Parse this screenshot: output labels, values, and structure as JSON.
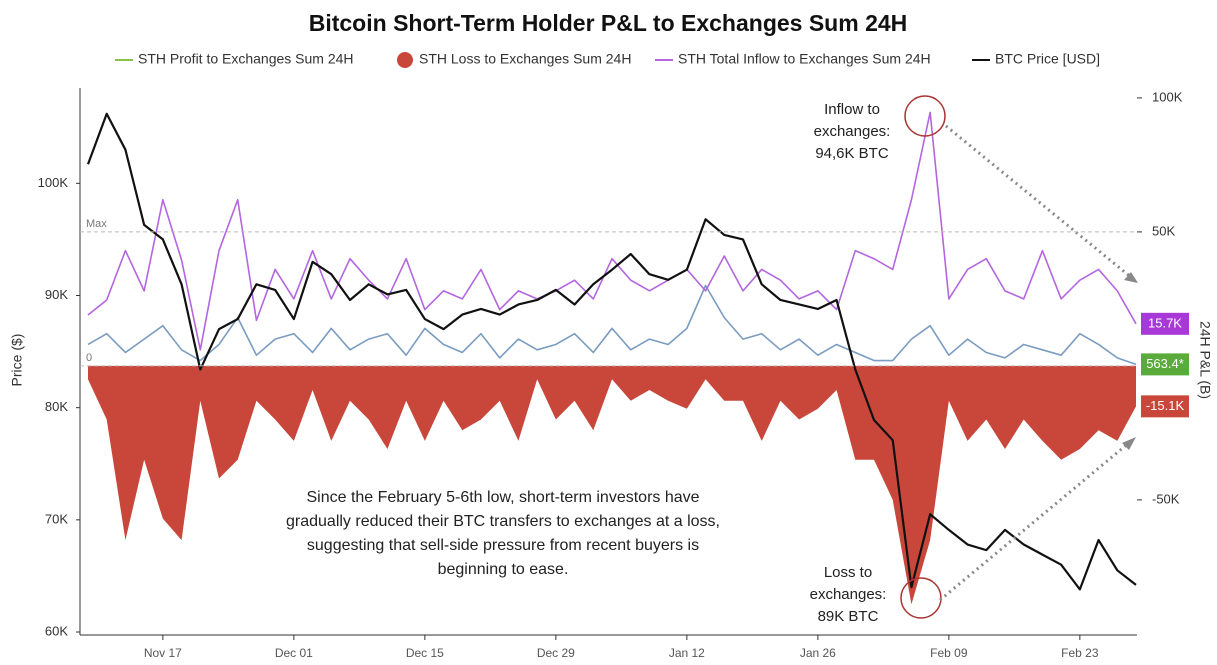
{
  "chart_data": {
    "type": "line",
    "title": "Bitcoin Short-Term Holder P&L to Exchanges Sum 24H",
    "y_label": "Price ($)",
    "y2_label": "24H P&L (B)",
    "categories": [
      null,
      null,
      null,
      null,
      "Nov 17",
      null,
      null,
      null,
      null,
      null,
      null,
      "Dec 01",
      null,
      null,
      null,
      null,
      null,
      null,
      "Dec 15",
      null,
      null,
      null,
      null,
      null,
      null,
      "Dec 29",
      null,
      null,
      null,
      null,
      null,
      null,
      "Jan 12",
      null,
      null,
      null,
      null,
      null,
      null,
      "Jan 26",
      null,
      null,
      null,
      null,
      null,
      null,
      "Feb 09",
      null,
      null,
      null,
      null,
      null,
      null,
      "Feb 23",
      null,
      null,
      null
    ],
    "ylim": [
      60000,
      108500
    ],
    "yticks": [
      {
        "value": 60000,
        "label": "60K"
      },
      {
        "value": 70000,
        "label": "70K"
      },
      {
        "value": 80000,
        "label": "80K"
      },
      {
        "value": 90000,
        "label": "90K"
      },
      {
        "value": 100000,
        "label": "100K"
      }
    ],
    "y2lim": [
      -99300,
      103700
    ],
    "y2ticks": [
      {
        "value": 100000,
        "label": "100K"
      },
      {
        "value": 50000,
        "label": "50K"
      },
      {
        "value": -50000,
        "label": "-50K"
      }
    ],
    "reference_lines": [
      {
        "label": "Max",
        "value": 50000
      },
      {
        "label": "0",
        "value": 0
      }
    ],
    "series": [
      {
        "name": "STH Profit to Exchanges Sum 24H",
        "color": "#7a9cc0",
        "legend_color": "#8bc34a",
        "kind": "line",
        "axis": "y2",
        "end_label": "563.4*",
        "end_color": "#5aab3c",
        "values": [
          8000,
          12000,
          5000,
          10000,
          15000,
          6000,
          2000,
          8000,
          18000,
          4000,
          10000,
          12000,
          5000,
          14000,
          6000,
          10000,
          12000,
          4000,
          14000,
          8000,
          5000,
          12000,
          3000,
          10000,
          6000,
          8000,
          12000,
          5000,
          14000,
          6000,
          10000,
          8000,
          14000,
          30000,
          18000,
          10000,
          12000,
          6000,
          10000,
          4000,
          8000,
          5000,
          2000,
          2000,
          10000,
          15000,
          4000,
          10000,
          5000,
          3000,
          8000,
          6000,
          4000,
          12000,
          8000,
          3000,
          563.4
        ]
      },
      {
        "name": "STH Loss to Exchanges Sum 24H",
        "color": "#c9473a",
        "kind": "area",
        "axis": "y2",
        "end_label": "-15.1K",
        "end_color": "#c9473a",
        "values": [
          -5000,
          -20000,
          -65000,
          -35000,
          -57000,
          -65000,
          -13000,
          -42000,
          -35000,
          -13000,
          -20000,
          -28000,
          -9000,
          -28000,
          -13000,
          -20000,
          -31000,
          -13000,
          -28000,
          -13000,
          -24000,
          -20000,
          -13000,
          -28000,
          -5000,
          -20000,
          -13000,
          -24000,
          -5000,
          -13000,
          -9000,
          -13000,
          -16000,
          -5000,
          -13000,
          -13000,
          -28000,
          -13000,
          -20000,
          -16000,
          -9000,
          -35000,
          -35000,
          -50000,
          -89000,
          -65000,
          -13000,
          -28000,
          -20000,
          -31000,
          -20000,
          -28000,
          -35000,
          -31000,
          -24000,
          -28000,
          -15100
        ]
      },
      {
        "name": "STH Total Inflow to Exchanges Sum 24H",
        "color": "#b366e0",
        "kind": "line",
        "axis": "y2",
        "end_label": "15.7K",
        "end_color": "#a938d8",
        "values": [
          19000,
          24600,
          43000,
          28000,
          62000,
          39500,
          6000,
          43000,
          62000,
          17000,
          36000,
          25000,
          43000,
          25000,
          40000,
          32000,
          25000,
          40000,
          21000,
          28000,
          25000,
          36000,
          21000,
          28000,
          25000,
          28000,
          32000,
          25000,
          40000,
          32000,
          28000,
          32000,
          36000,
          28000,
          41000,
          28000,
          36000,
          32000,
          25000,
          28000,
          21000,
          43000,
          40000,
          36000,
          62000,
          94600,
          25000,
          36000,
          40000,
          28000,
          25000,
          43000,
          25000,
          32000,
          36000,
          28000,
          15700
        ]
      },
      {
        "name": "BTC Price [USD]",
        "color": "#111111",
        "kind": "line",
        "axis": "y",
        "values": [
          101700,
          106200,
          103000,
          96300,
          95000,
          91000,
          83400,
          87000,
          87900,
          91000,
          90500,
          87900,
          93000,
          91900,
          89600,
          91000,
          90100,
          90500,
          87900,
          87000,
          88300,
          88800,
          88300,
          89200,
          89600,
          90500,
          89200,
          91000,
          92300,
          93700,
          91900,
          91400,
          92300,
          96800,
          95400,
          95000,
          91000,
          89600,
          89200,
          88800,
          89600,
          83400,
          78900,
          77100,
          64000,
          70500,
          69100,
          67800,
          67300,
          69100,
          67800,
          66900,
          66000,
          63800,
          68200,
          65500,
          64200
        ]
      }
    ],
    "annotations": [
      {
        "lines": [
          "Inflow to",
          "exchanges:",
          "94,6K BTC"
        ]
      },
      {
        "lines": [
          "Loss to",
          "exchanges:",
          "89K BTC"
        ]
      },
      {
        "lines": [
          "Since the February 5-6th low, short-term investors have",
          "gradually reduced their BTC transfers to exchanges at a loss,",
          "suggesting that sell-side pressure from recent buyers is",
          "beginning to ease."
        ]
      }
    ]
  }
}
